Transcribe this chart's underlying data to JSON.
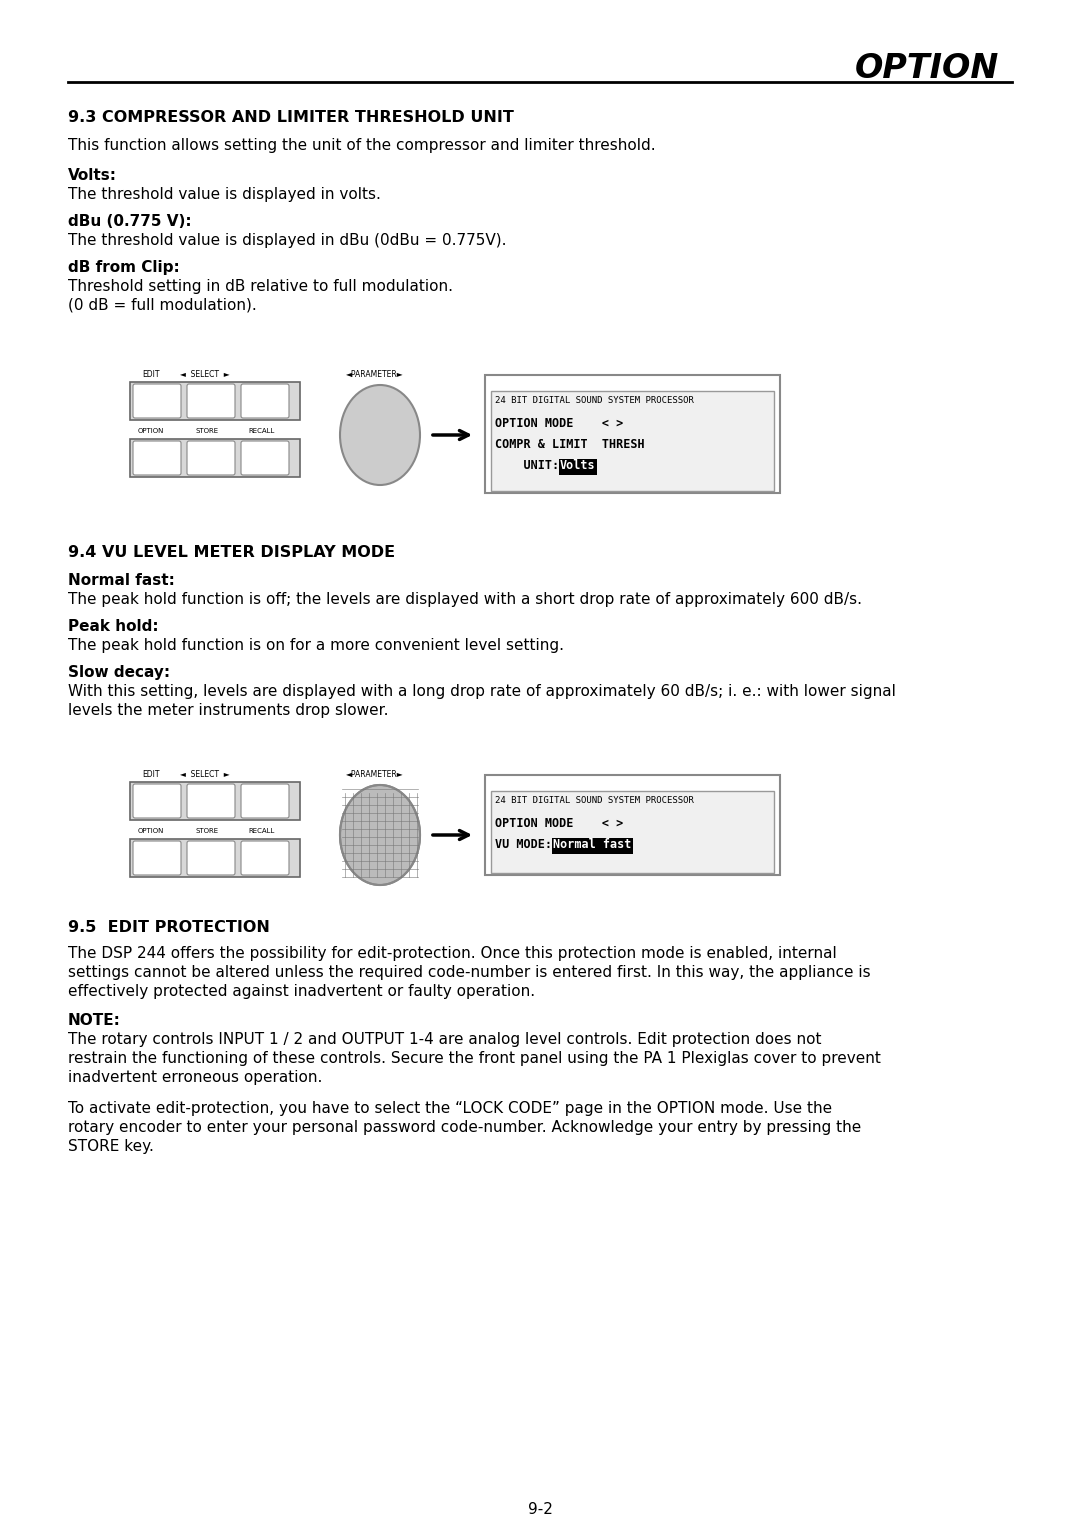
{
  "title": "OPTION",
  "page_number": "9-2",
  "background": "#ffffff",
  "section1_heading": "9.3 COMPRESSOR AND LIMITER THRESHOLD UNIT",
  "section1_intro": "This function allows setting the unit of the compressor and limiter threshold.",
  "section1_items": [
    {
      "label": "Volts:",
      "text": "The threshold value is displayed in volts."
    },
    {
      "label": "dBu (0.775 V):",
      "text": "The threshold value is displayed in dBu (0dBu = 0.775V)."
    },
    {
      "label": "dB from Clip:",
      "text": "Threshold setting in dB relative to full modulation.\n(0 dB = full modulation)."
    }
  ],
  "display1_line1": "24 BIT DIGITAL SOUND SYSTEM PROCESSOR",
  "display1_line2": "OPTION MODE    < >",
  "display1_line3": "COMPR & LIMIT  THRESH",
  "display1_line4_prefix": "    UNIT:",
  "display1_line4_highlight": "Volts",
  "section2_heading": "9.4 VU LEVEL METER DISPLAY MODE",
  "section2_items": [
    {
      "label": "Normal fast:",
      "text": "The peak hold function is off; the levels are displayed with a short drop rate of approximately 600 dB/s."
    },
    {
      "label": "Peak hold:",
      "text": "The peak hold function is on for a more convenient level setting."
    },
    {
      "label": "Slow decay:",
      "text": "With this setting, levels are displayed with a long drop rate of approximately 60 dB/s; i. e.: with lower signal\nlevels the meter instruments drop slower."
    }
  ],
  "display2_line1": "24 BIT DIGITAL SOUND SYSTEM PROCESSOR",
  "display2_line2": "OPTION MODE    < >",
  "display2_line3_prefix": "VU MODE:",
  "display2_line3_highlight": "Normal fast",
  "section3_heading": "9.5  EDIT PROTECTION",
  "section3_para1": "The DSP 244 offers the possibility for edit-protection. Once this protection mode is enabled, internal\nsettings cannot be altered unless the required code-number is entered first. In this way, the appliance is\neffectively protected against inadvertent or faulty operation.",
  "section3_note_label": "NOTE:",
  "section3_note_text": "The rotary controls INPUT 1 / 2 and OUTPUT 1-4 are analog level controls. Edit protection does not\nrestrain the functioning of these controls. Secure the front panel using the PA 1 Plexiglas cover to prevent\ninadvertent erroneous operation.",
  "section3_para2": "To activate edit-protection, you have to select the “LOCK CODE” page in the OPTION mode. Use the\nrotary encoder to enter your personal password code-number. Acknowledge your entry by pressing the\nSTORE key."
}
